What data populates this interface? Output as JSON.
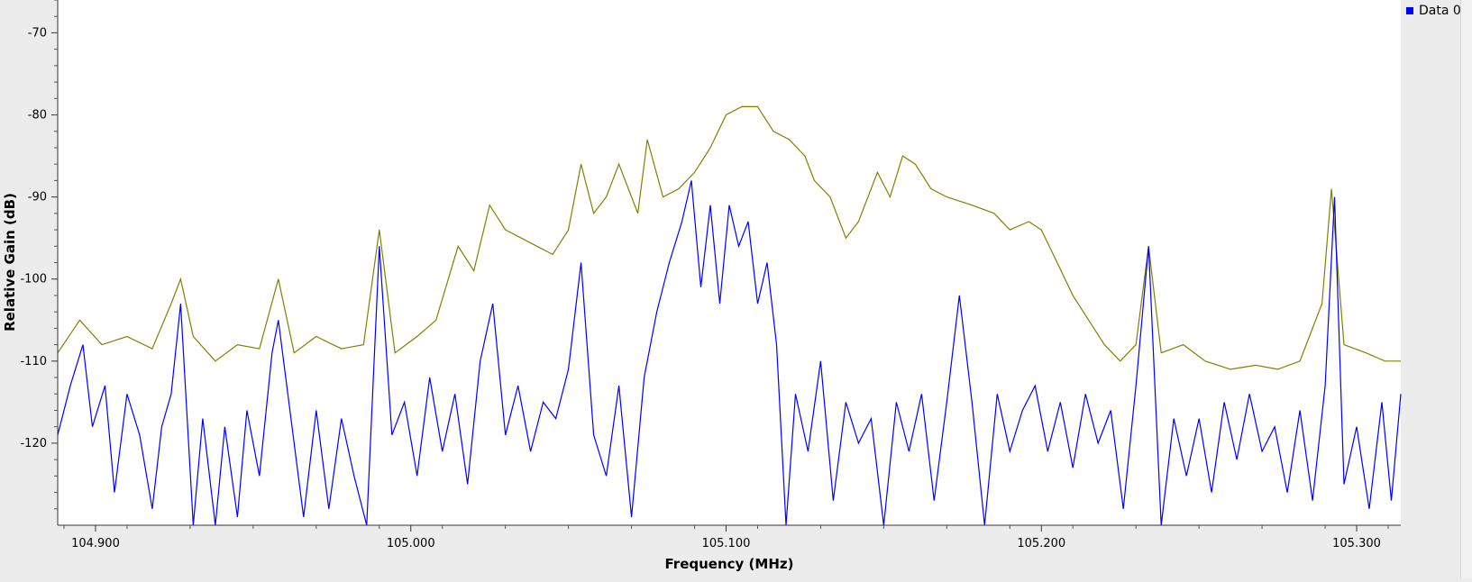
{
  "chart_data": {
    "type": "line",
    "xlabel": "Frequency (MHz)",
    "ylabel": "Relative Gain (dB)",
    "xlim": [
      104.888,
      105.314
    ],
    "ylim": [
      -130,
      -66
    ],
    "x_ticks": [
      "104.900",
      "105.000",
      "105.100",
      "105.200",
      "105.300"
    ],
    "y_ticks": [
      "-70",
      "-80",
      "-90",
      "-100",
      "-110",
      "-120"
    ],
    "legend": [
      {
        "label": "Data 0",
        "color": "#0000ff"
      }
    ],
    "legend_position": "top-right",
    "grid": false,
    "series": [
      {
        "color": "#808000",
        "points": [
          [
            104.888,
            -109
          ],
          [
            104.895,
            -105
          ],
          [
            104.902,
            -108
          ],
          [
            104.91,
            -107
          ],
          [
            104.918,
            -108.5
          ],
          [
            104.924,
            -103
          ],
          [
            104.927,
            -100
          ],
          [
            104.931,
            -107
          ],
          [
            104.938,
            -110
          ],
          [
            104.945,
            -108
          ],
          [
            104.952,
            -108.5
          ],
          [
            104.958,
            -100
          ],
          [
            104.963,
            -109
          ],
          [
            104.97,
            -107
          ],
          [
            104.978,
            -108.5
          ],
          [
            104.985,
            -108
          ],
          [
            104.99,
            -94
          ],
          [
            104.995,
            -109
          ],
          [
            105.002,
            -107
          ],
          [
            105.008,
            -105
          ],
          [
            105.015,
            -96
          ],
          [
            105.02,
            -99
          ],
          [
            105.025,
            -91
          ],
          [
            105.03,
            -94
          ],
          [
            105.035,
            -95
          ],
          [
            105.04,
            -96
          ],
          [
            105.045,
            -97
          ],
          [
            105.05,
            -94
          ],
          [
            105.054,
            -86
          ],
          [
            105.058,
            -92
          ],
          [
            105.062,
            -90
          ],
          [
            105.066,
            -86
          ],
          [
            105.072,
            -92
          ],
          [
            105.075,
            -83
          ],
          [
            105.08,
            -90
          ],
          [
            105.085,
            -89
          ],
          [
            105.09,
            -87
          ],
          [
            105.095,
            -84
          ],
          [
            105.1,
            -80
          ],
          [
            105.105,
            -79
          ],
          [
            105.11,
            -79
          ],
          [
            105.115,
            -82
          ],
          [
            105.12,
            -83
          ],
          [
            105.125,
            -85
          ],
          [
            105.128,
            -88
          ],
          [
            105.133,
            -90
          ],
          [
            105.138,
            -95
          ],
          [
            105.142,
            -93
          ],
          [
            105.148,
            -87
          ],
          [
            105.152,
            -90
          ],
          [
            105.156,
            -85
          ],
          [
            105.16,
            -86
          ],
          [
            105.165,
            -89
          ],
          [
            105.17,
            -90
          ],
          [
            105.178,
            -91
          ],
          [
            105.185,
            -92
          ],
          [
            105.19,
            -94
          ],
          [
            105.196,
            -93
          ],
          [
            105.2,
            -94
          ],
          [
            105.205,
            -98
          ],
          [
            105.21,
            -102
          ],
          [
            105.215,
            -105
          ],
          [
            105.22,
            -108
          ],
          [
            105.225,
            -110
          ],
          [
            105.23,
            -108
          ],
          [
            105.234,
            -96
          ],
          [
            105.238,
            -109
          ],
          [
            105.245,
            -108
          ],
          [
            105.252,
            -110
          ],
          [
            105.26,
            -111
          ],
          [
            105.268,
            -110.5
          ],
          [
            105.275,
            -111
          ],
          [
            105.282,
            -110
          ],
          [
            105.289,
            -103
          ],
          [
            105.292,
            -89
          ],
          [
            105.296,
            -108
          ],
          [
            105.303,
            -109
          ],
          [
            105.309,
            -110
          ],
          [
            105.314,
            -110
          ]
        ]
      },
      {
        "name": "Data 0",
        "color": "#0000ff",
        "points": [
          [
            104.888,
            -119
          ],
          [
            104.892,
            -113
          ],
          [
            104.896,
            -108
          ],
          [
            104.899,
            -118
          ],
          [
            104.903,
            -113
          ],
          [
            104.906,
            -126
          ],
          [
            104.91,
            -114
          ],
          [
            104.914,
            -119
          ],
          [
            104.918,
            -128
          ],
          [
            104.921,
            -118
          ],
          [
            104.924,
            -114
          ],
          [
            104.927,
            -103
          ],
          [
            104.931,
            -130
          ],
          [
            104.934,
            -117
          ],
          [
            104.938,
            -130
          ],
          [
            104.941,
            -118
          ],
          [
            104.945,
            -129
          ],
          [
            104.948,
            -116
          ],
          [
            104.952,
            -124
          ],
          [
            104.956,
            -109
          ],
          [
            104.958,
            -105
          ],
          [
            104.962,
            -117
          ],
          [
            104.966,
            -129
          ],
          [
            104.97,
            -116
          ],
          [
            104.974,
            -128
          ],
          [
            104.978,
            -117
          ],
          [
            104.982,
            -124
          ],
          [
            104.986,
            -130
          ],
          [
            104.99,
            -96
          ],
          [
            104.994,
            -119
          ],
          [
            104.998,
            -115
          ],
          [
            105.002,
            -124
          ],
          [
            105.006,
            -112
          ],
          [
            105.01,
            -121
          ],
          [
            105.014,
            -114
          ],
          [
            105.018,
            -125
          ],
          [
            105.022,
            -110
          ],
          [
            105.026,
            -103
          ],
          [
            105.03,
            -119
          ],
          [
            105.034,
            -113
          ],
          [
            105.038,
            -121
          ],
          [
            105.042,
            -115
          ],
          [
            105.046,
            -117
          ],
          [
            105.05,
            -111
          ],
          [
            105.054,
            -98
          ],
          [
            105.058,
            -119
          ],
          [
            105.062,
            -124
          ],
          [
            105.066,
            -113
          ],
          [
            105.07,
            -129
          ],
          [
            105.074,
            -112
          ],
          [
            105.078,
            -104
          ],
          [
            105.082,
            -98
          ],
          [
            105.086,
            -93
          ],
          [
            105.089,
            -88
          ],
          [
            105.092,
            -101
          ],
          [
            105.095,
            -91
          ],
          [
            105.098,
            -103
          ],
          [
            105.101,
            -91
          ],
          [
            105.104,
            -96
          ],
          [
            105.107,
            -93
          ],
          [
            105.11,
            -103
          ],
          [
            105.113,
            -98
          ],
          [
            105.116,
            -108
          ],
          [
            105.119,
            -130
          ],
          [
            105.122,
            -114
          ],
          [
            105.126,
            -121
          ],
          [
            105.13,
            -110
          ],
          [
            105.134,
            -127
          ],
          [
            105.138,
            -115
          ],
          [
            105.142,
            -120
          ],
          [
            105.146,
            -117
          ],
          [
            105.15,
            -130
          ],
          [
            105.154,
            -115
          ],
          [
            105.158,
            -121
          ],
          [
            105.162,
            -114
          ],
          [
            105.166,
            -127
          ],
          [
            105.17,
            -115
          ],
          [
            105.174,
            -102
          ],
          [
            105.178,
            -115
          ],
          [
            105.182,
            -130
          ],
          [
            105.186,
            -114
          ],
          [
            105.19,
            -121
          ],
          [
            105.194,
            -116
          ],
          [
            105.198,
            -113
          ],
          [
            105.202,
            -121
          ],
          [
            105.206,
            -115
          ],
          [
            105.21,
            -123
          ],
          [
            105.214,
            -114
          ],
          [
            105.218,
            -120
          ],
          [
            105.222,
            -116
          ],
          [
            105.226,
            -128
          ],
          [
            105.23,
            -113
          ],
          [
            105.234,
            -96
          ],
          [
            105.238,
            -130
          ],
          [
            105.242,
            -117
          ],
          [
            105.246,
            -124
          ],
          [
            105.25,
            -117
          ],
          [
            105.254,
            -126
          ],
          [
            105.258,
            -115
          ],
          [
            105.262,
            -122
          ],
          [
            105.266,
            -114
          ],
          [
            105.27,
            -121
          ],
          [
            105.274,
            -118
          ],
          [
            105.278,
            -126
          ],
          [
            105.282,
            -116
          ],
          [
            105.286,
            -127
          ],
          [
            105.29,
            -113
          ],
          [
            105.293,
            -90
          ],
          [
            105.296,
            -125
          ],
          [
            105.3,
            -118
          ],
          [
            105.304,
            -128
          ],
          [
            105.308,
            -115
          ],
          [
            105.311,
            -127
          ],
          [
            105.314,
            -114
          ]
        ]
      }
    ]
  }
}
